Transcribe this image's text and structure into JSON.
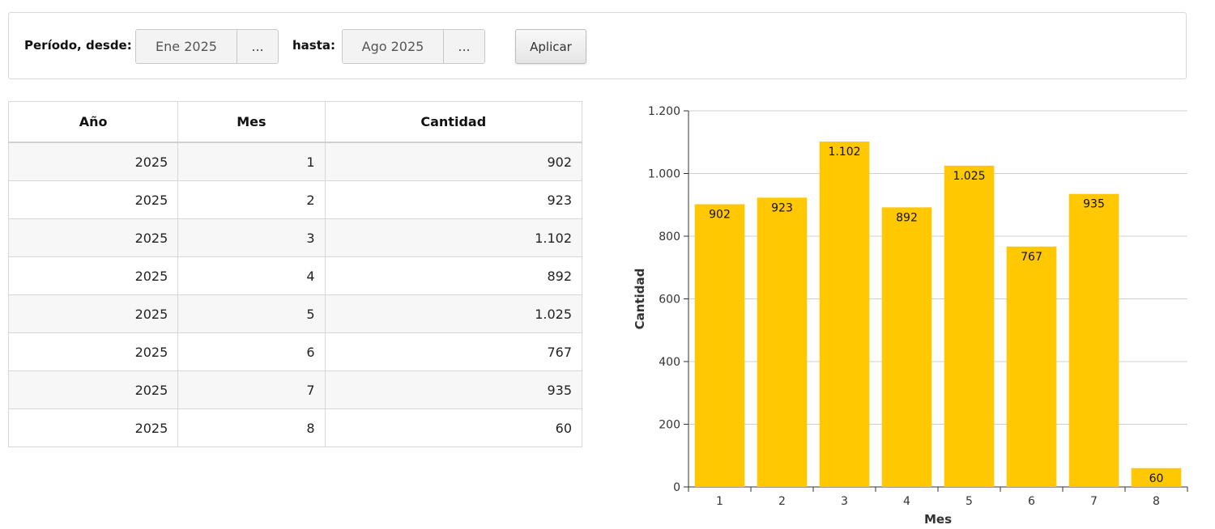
{
  "filter": {
    "from_label": "Período, desde:",
    "from_value": "Ene 2025",
    "to_label": "hasta:",
    "to_value": "Ago 2025",
    "picker_label": "...",
    "apply_label": "Aplicar"
  },
  "table": {
    "headers": [
      "Año",
      "Mes",
      "Cantidad"
    ],
    "rows": [
      [
        "2025",
        "1",
        "902"
      ],
      [
        "2025",
        "2",
        "923"
      ],
      [
        "2025",
        "3",
        "1.102"
      ],
      [
        "2025",
        "4",
        "892"
      ],
      [
        "2025",
        "5",
        "1.025"
      ],
      [
        "2025",
        "6",
        "767"
      ],
      [
        "2025",
        "7",
        "935"
      ],
      [
        "2025",
        "8",
        "60"
      ]
    ]
  },
  "chart_data": {
    "type": "bar",
    "categories": [
      "1",
      "2",
      "3",
      "4",
      "5",
      "6",
      "7",
      "8"
    ],
    "values": [
      902,
      923,
      1102,
      892,
      1025,
      767,
      935,
      60
    ],
    "value_labels": [
      "902",
      "923",
      "1.102",
      "892",
      "1.025",
      "767",
      "935",
      "60"
    ],
    "title": "",
    "xlabel": "Mes",
    "ylabel": "Cantidad",
    "ylim": [
      0,
      1200
    ],
    "yticks": [
      0,
      200,
      400,
      600,
      800,
      1000,
      1200
    ],
    "ytick_labels": [
      "0",
      "200",
      "400",
      "600",
      "800",
      "1.000",
      "1.200"
    ],
    "grid": true,
    "bar_color": "#FFC800"
  }
}
